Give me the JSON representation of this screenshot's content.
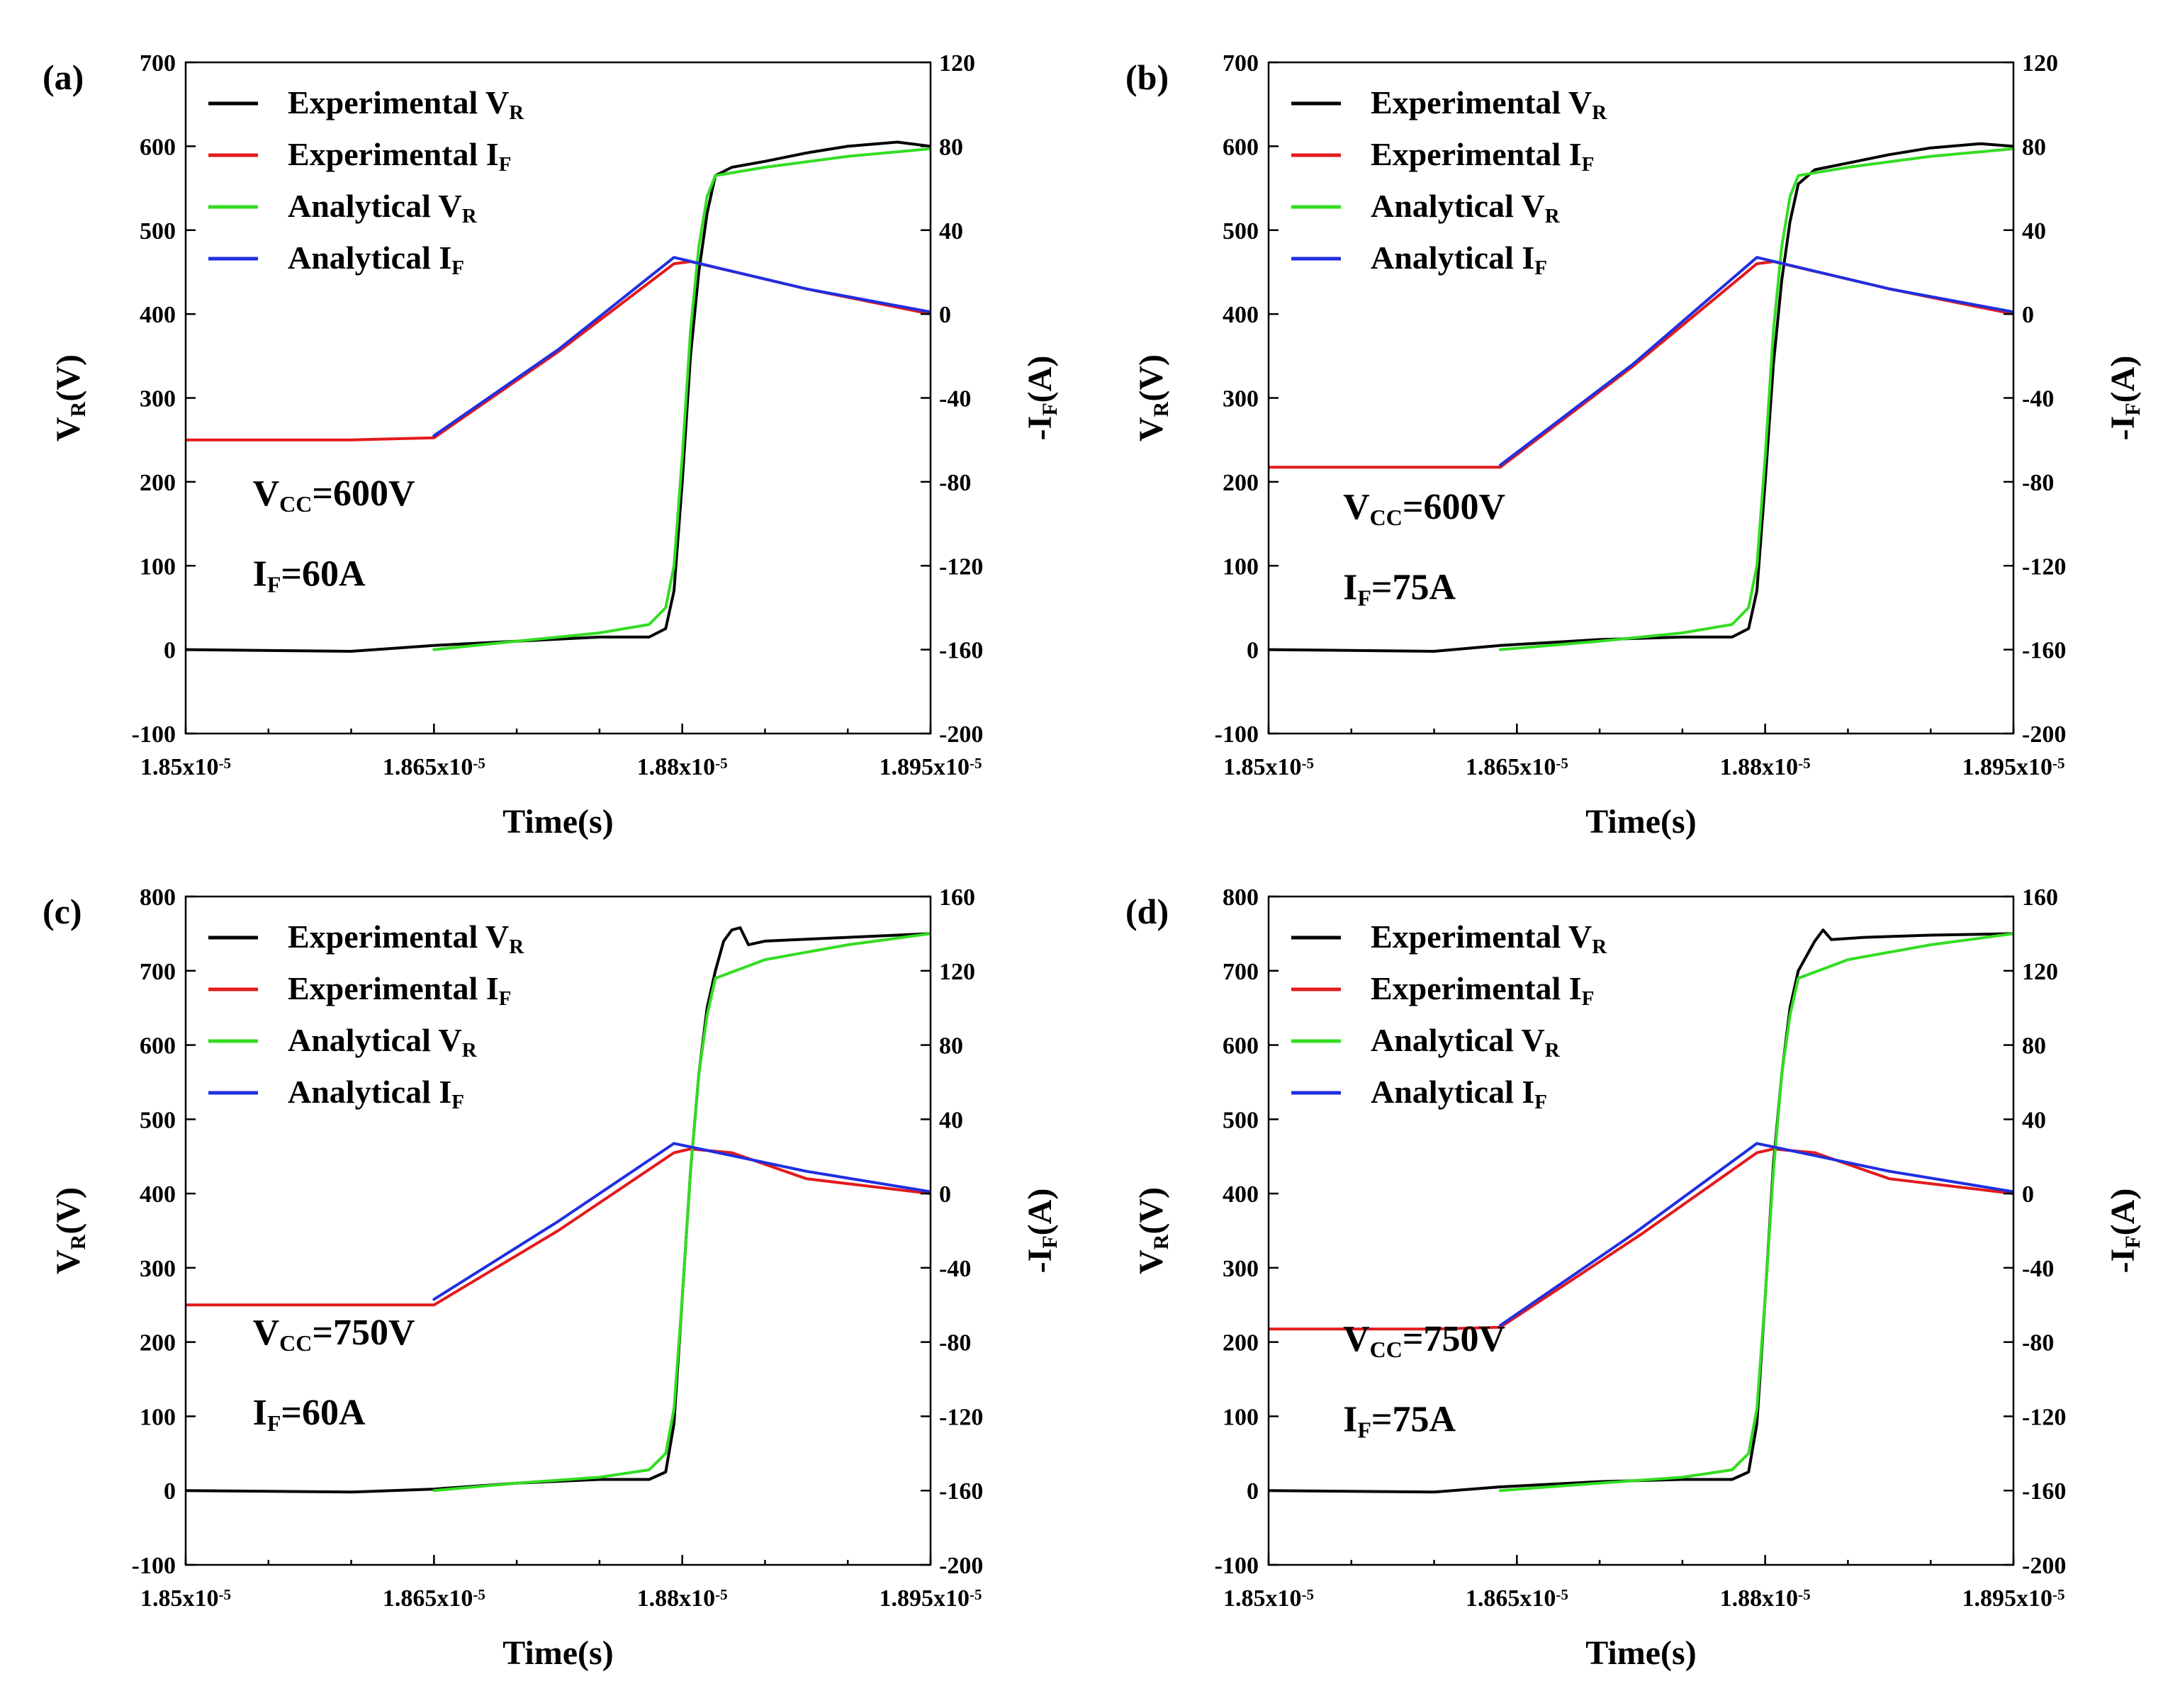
{
  "chart_data": [
    {
      "type": "line",
      "panel_label": "(a)",
      "xlabel": "Time(s)",
      "ylabel_left": "V_R(V)",
      "ylabel_right": "-I_F(A)",
      "xlim": [
        1.85e-05,
        1.895e-05
      ],
      "ylim_left": [
        -100,
        700
      ],
      "ylim_right": [
        -200,
        120
      ],
      "x_ticks": [
        "1.85x10^-5",
        "1.865x10^-5",
        "1.88x10^-5",
        "1.895x10^-5"
      ],
      "y_ticks_left": [
        -100,
        0,
        100,
        200,
        300,
        400,
        500,
        600,
        700
      ],
      "y_ticks_right": [
        -200,
        -160,
        -120,
        -80,
        -40,
        0,
        40,
        80,
        120
      ],
      "legend_position": "top-left",
      "annotations": [
        "V_CC=600V",
        "I_F=60A"
      ],
      "series": [
        {
          "name": "Experimental V_R",
          "axis": "left",
          "color": "#000000",
          "x": [
            1.85e-05,
            1.86e-05,
            1.865e-05,
            1.87e-05,
            1.875e-05,
            1.878e-05,
            1.879e-05,
            1.8795e-05,
            1.88e-05,
            1.8805e-05,
            1.881e-05,
            1.8815e-05,
            1.882e-05,
            1.883e-05,
            1.885e-05,
            1.8875e-05,
            1.89e-05,
            1.893e-05,
            1.895e-05
          ],
          "y": [
            0,
            -2,
            5,
            10,
            15,
            15,
            25,
            70,
            200,
            350,
            450,
            520,
            565,
            575,
            582,
            592,
            600,
            605,
            600
          ]
        },
        {
          "name": "Experimental I_F",
          "axis": "right",
          "color": "#e31a1c",
          "x": [
            1.85e-05,
            1.86e-05,
            1.865e-05,
            1.8725e-05,
            1.8795e-05,
            1.8805e-05,
            1.8875e-05,
            1.895e-05
          ],
          "y": [
            -60,
            -60,
            -59,
            -18,
            24,
            25,
            12,
            0
          ]
        },
        {
          "name": "Analytical V_R",
          "axis": "left",
          "color": "#33dd22",
          "x": [
            1.865e-05,
            1.87e-05,
            1.875e-05,
            1.878e-05,
            1.879e-05,
            1.8795e-05,
            1.88e-05,
            1.8805e-05,
            1.881e-05,
            1.8815e-05,
            1.882e-05,
            1.885e-05,
            1.89e-05,
            1.895e-05
          ],
          "y": [
            0,
            10,
            20,
            30,
            50,
            100,
            230,
            380,
            480,
            540,
            565,
            575,
            588,
            597
          ]
        },
        {
          "name": "Analytical I_F",
          "axis": "right",
          "color": "#1f2fe0",
          "x": [
            1.865e-05,
            1.8725e-05,
            1.8795e-05,
            1.8875e-05,
            1.895e-05
          ],
          "y": [
            -58,
            -17,
            27,
            12,
            1
          ]
        }
      ]
    },
    {
      "type": "line",
      "panel_label": "(b)",
      "xlabel": "Time(s)",
      "ylabel_left": "V_R(V)",
      "ylabel_right": "-I_F(A)",
      "xlim": [
        1.85e-05,
        1.895e-05
      ],
      "ylim_left": [
        -100,
        700
      ],
      "ylim_right": [
        -200,
        120
      ],
      "x_ticks": [
        "1.85x10^-5",
        "1.865x10^-5",
        "1.88x10^-5",
        "1.895x10^-5"
      ],
      "y_ticks_left": [
        -100,
        0,
        100,
        200,
        300,
        400,
        500,
        600,
        700
      ],
      "y_ticks_right": [
        -200,
        -160,
        -120,
        -80,
        -40,
        0,
        40,
        80,
        120
      ],
      "legend_position": "top-left",
      "annotations": [
        "V_CC=600V",
        "I_F=75A"
      ],
      "series": [
        {
          "name": "Experimental V_R",
          "axis": "left",
          "color": "#000000",
          "x": [
            1.85e-05,
            1.86e-05,
            1.864e-05,
            1.87e-05,
            1.875e-05,
            1.878e-05,
            1.879e-05,
            1.8795e-05,
            1.88e-05,
            1.8805e-05,
            1.881e-05,
            1.8815e-05,
            1.882e-05,
            1.883e-05,
            1.885e-05,
            1.8875e-05,
            1.89e-05,
            1.893e-05,
            1.895e-05
          ],
          "y": [
            0,
            -2,
            5,
            12,
            15,
            15,
            25,
            70,
            200,
            340,
            440,
            510,
            555,
            572,
            580,
            590,
            598,
            603,
            600
          ]
        },
        {
          "name": "Experimental I_F",
          "axis": "right",
          "color": "#e31a1c",
          "x": [
            1.85e-05,
            1.86e-05,
            1.864e-05,
            1.872e-05,
            1.8795e-05,
            1.8805e-05,
            1.8875e-05,
            1.895e-05
          ],
          "y": [
            -73,
            -73,
            -73,
            -25,
            24,
            25,
            12,
            0
          ]
        },
        {
          "name": "Analytical V_R",
          "axis": "left",
          "color": "#33dd22",
          "x": [
            1.864e-05,
            1.87e-05,
            1.875e-05,
            1.878e-05,
            1.879e-05,
            1.8795e-05,
            1.88e-05,
            1.8805e-05,
            1.881e-05,
            1.8815e-05,
            1.882e-05,
            1.885e-05,
            1.89e-05,
            1.895e-05
          ],
          "y": [
            0,
            10,
            20,
            30,
            50,
            100,
            230,
            380,
            480,
            540,
            565,
            575,
            588,
            597
          ]
        },
        {
          "name": "Analytical I_F",
          "axis": "right",
          "color": "#1f2fe0",
          "x": [
            1.864e-05,
            1.872e-05,
            1.8795e-05,
            1.8875e-05,
            1.895e-05
          ],
          "y": [
            -72,
            -24,
            27,
            12,
            1
          ]
        }
      ]
    },
    {
      "type": "line",
      "panel_label": "(c)",
      "xlabel": "Time(s)",
      "ylabel_left": "V_R(V)",
      "ylabel_right": "-I_F(A)",
      "xlim": [
        1.85e-05,
        1.895e-05
      ],
      "ylim_left": [
        -100,
        800
      ],
      "ylim_right": [
        -200,
        160
      ],
      "x_ticks": [
        "1.85x10^-5",
        "1.865x10^-5",
        "1.88x10^-5",
        "1.895x10^-5"
      ],
      "y_ticks_left": [
        -100,
        0,
        100,
        200,
        300,
        400,
        500,
        600,
        700,
        800
      ],
      "y_ticks_right": [
        -200,
        -160,
        -120,
        -80,
        -40,
        0,
        40,
        80,
        120,
        160
      ],
      "legend_position": "top-left",
      "annotations": [
        "V_CC=750V",
        "I_F=60A"
      ],
      "series": [
        {
          "name": "Experimental V_R",
          "axis": "left",
          "color": "#000000",
          "x": [
            1.85e-05,
            1.86e-05,
            1.865e-05,
            1.87e-05,
            1.875e-05,
            1.878e-05,
            1.879e-05,
            1.8795e-05,
            1.88e-05,
            1.8805e-05,
            1.881e-05,
            1.8815e-05,
            1.882e-05,
            1.8825e-05,
            1.883e-05,
            1.8835e-05,
            1.884e-05,
            1.885e-05,
            1.887e-05,
            1.89e-05,
            1.895e-05
          ],
          "y": [
            0,
            -2,
            2,
            10,
            15,
            15,
            25,
            90,
            260,
            430,
            560,
            650,
            700,
            740,
            755,
            758,
            735,
            740,
            742,
            745,
            750
          ]
        },
        {
          "name": "Experimental I_F",
          "axis": "right",
          "color": "#e31a1c",
          "x": [
            1.85e-05,
            1.86e-05,
            1.865e-05,
            1.8725e-05,
            1.8795e-05,
            1.8805e-05,
            1.883e-05,
            1.8875e-05,
            1.895e-05
          ],
          "y": [
            -60,
            -60,
            -60,
            -20,
            22,
            24,
            22,
            8,
            0
          ]
        },
        {
          "name": "Analytical V_R",
          "axis": "left",
          "color": "#33dd22",
          "x": [
            1.865e-05,
            1.87e-05,
            1.875e-05,
            1.878e-05,
            1.879e-05,
            1.8795e-05,
            1.88e-05,
            1.8805e-05,
            1.881e-05,
            1.8815e-05,
            1.882e-05,
            1.885e-05,
            1.89e-05,
            1.895e-05
          ],
          "y": [
            0,
            10,
            18,
            28,
            50,
            110,
            260,
            430,
            560,
            640,
            690,
            715,
            735,
            750
          ]
        },
        {
          "name": "Analytical I_F",
          "axis": "right",
          "color": "#1f2fe0",
          "x": [
            1.865e-05,
            1.8725e-05,
            1.8795e-05,
            1.8875e-05,
            1.895e-05
          ],
          "y": [
            -57,
            -15,
            27,
            12,
            1
          ]
        }
      ]
    },
    {
      "type": "line",
      "panel_label": "(d)",
      "xlabel": "Time(s)",
      "ylabel_left": "V_R(V)",
      "ylabel_right": "-I_F(A)",
      "xlim": [
        1.85e-05,
        1.895e-05
      ],
      "ylim_left": [
        -100,
        800
      ],
      "ylim_right": [
        -200,
        160
      ],
      "x_ticks": [
        "1.85x10^-5",
        "1.865x10^-5",
        "1.88x10^-5",
        "1.895x10^-5"
      ],
      "y_ticks_left": [
        -100,
        0,
        100,
        200,
        300,
        400,
        500,
        600,
        700,
        800
      ],
      "y_ticks_right": [
        -200,
        -160,
        -120,
        -80,
        -40,
        0,
        40,
        80,
        120,
        160
      ],
      "legend_position": "top-left",
      "annotations": [
        "V_CC=750V",
        "I_F=75A"
      ],
      "series": [
        {
          "name": "Experimental V_R",
          "axis": "left",
          "color": "#000000",
          "x": [
            1.85e-05,
            1.86e-05,
            1.864e-05,
            1.87e-05,
            1.875e-05,
            1.878e-05,
            1.879e-05,
            1.8795e-05,
            1.88e-05,
            1.8805e-05,
            1.881e-05,
            1.8815e-05,
            1.882e-05,
            1.883e-05,
            1.8835e-05,
            1.884e-05,
            1.886e-05,
            1.89e-05,
            1.895e-05
          ],
          "y": [
            0,
            -2,
            5,
            12,
            15,
            15,
            25,
            90,
            260,
            440,
            560,
            650,
            700,
            740,
            755,
            742,
            745,
            748,
            750
          ]
        },
        {
          "name": "Experimental I_F",
          "axis": "right",
          "color": "#e31a1c",
          "x": [
            1.85e-05,
            1.86e-05,
            1.864e-05,
            1.8725e-05,
            1.8795e-05,
            1.8805e-05,
            1.883e-05,
            1.8875e-05,
            1.895e-05
          ],
          "y": [
            -73,
            -73,
            -72,
            -22,
            22,
            24,
            22,
            8,
            0
          ]
        },
        {
          "name": "Analytical V_R",
          "axis": "left",
          "color": "#33dd22",
          "x": [
            1.864e-05,
            1.87e-05,
            1.875e-05,
            1.878e-05,
            1.879e-05,
            1.8795e-05,
            1.88e-05,
            1.8805e-05,
            1.881e-05,
            1.8815e-05,
            1.882e-05,
            1.885e-05,
            1.89e-05,
            1.895e-05
          ],
          "y": [
            0,
            10,
            18,
            28,
            50,
            110,
            260,
            430,
            560,
            640,
            690,
            715,
            735,
            750
          ]
        },
        {
          "name": "Analytical I_F",
          "axis": "right",
          "color": "#1f2fe0",
          "x": [
            1.864e-05,
            1.872e-05,
            1.8795e-05,
            1.8875e-05,
            1.895e-05
          ],
          "y": [
            -71,
            -22,
            27,
            12,
            1
          ]
        }
      ]
    }
  ]
}
